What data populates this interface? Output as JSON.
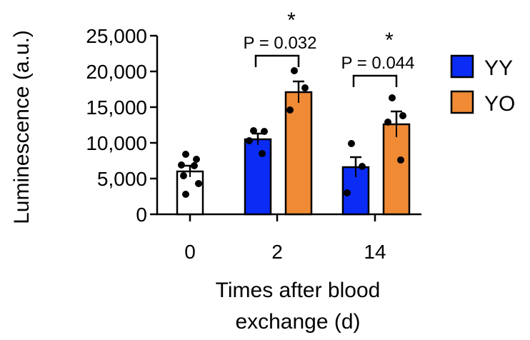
{
  "chart_data": {
    "type": "bar",
    "title": "",
    "ylabel": "Luminescence (a.u.)",
    "xlabel_lines": [
      "Times after blood",
      "exchange (d)"
    ],
    "ylim": [
      0,
      25000
    ],
    "yticks": [
      0,
      5000,
      10000,
      15000,
      20000,
      25000
    ],
    "ytick_labels": [
      "0",
      "5,000",
      "10,000",
      "15,000",
      "20,000",
      "25,000"
    ],
    "categories": [
      "0",
      "2",
      "14"
    ],
    "colors": {
      "baseline": "#ffffff",
      "YY": "#0a2cf5",
      "YO": "#f08a35"
    },
    "legend": {
      "position": "right",
      "entries": [
        "YY",
        "YO"
      ]
    },
    "bars": [
      {
        "category": "0",
        "group": "baseline",
        "value": 6000,
        "sem": 800,
        "points": [
          8400,
          7700,
          6900,
          6800,
          5400,
          4300,
          2800
        ]
      },
      {
        "category": "2",
        "group": "YY",
        "value": 10500,
        "sem": 800,
        "points": [
          11700,
          11600,
          10300,
          8500
        ]
      },
      {
        "category": "2",
        "group": "YO",
        "value": 17100,
        "sem": 1500,
        "points": [
          20100,
          17700,
          14600
        ]
      },
      {
        "category": "14",
        "group": "YY",
        "value": 6600,
        "sem": 1400,
        "points": [
          9900,
          6700,
          3000
        ]
      },
      {
        "category": "14",
        "group": "YO",
        "value": 12600,
        "sem": 1800,
        "points": [
          16300,
          13800,
          12900,
          7600
        ]
      }
    ],
    "annotations": [
      {
        "category": "2",
        "text": "P = 0.032",
        "star": "*"
      },
      {
        "category": "14",
        "text": "P = 0.044",
        "star": "*"
      }
    ]
  }
}
